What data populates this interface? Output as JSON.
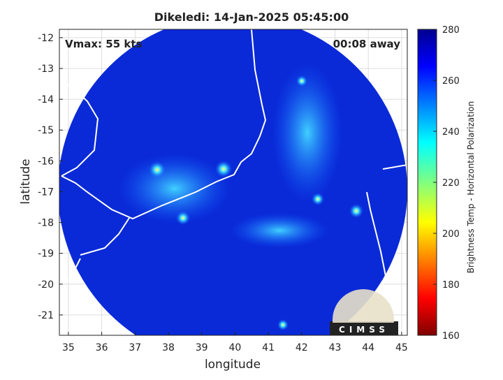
{
  "chart_data": {
    "type": "map",
    "title": "Dikeledi: 14-Jan-2025 05:45:00",
    "annotations": [
      "Vmax: 55 kts",
      "00:08 away"
    ],
    "xlabel": "longitude",
    "ylabel": "latitude",
    "xlim": [
      34.73,
      45.17
    ],
    "xticks": [
      35,
      36,
      37,
      38,
      39,
      40,
      41,
      42,
      43,
      44,
      45
    ],
    "ylim": [
      -21.66,
      -11.73
    ],
    "yticks": [
      -12,
      -13,
      -14,
      -15,
      -16,
      -17,
      -18,
      -19,
      -20,
      -21
    ],
    "grid": true,
    "colorbar": {
      "label": "Brightness Temp - Horizontal Polarization",
      "lim": [
        160,
        280
      ],
      "ticks": [
        160,
        180,
        200,
        220,
        240,
        260,
        280
      ],
      "colormap": "jet"
    },
    "logo": "CIMSS"
  }
}
